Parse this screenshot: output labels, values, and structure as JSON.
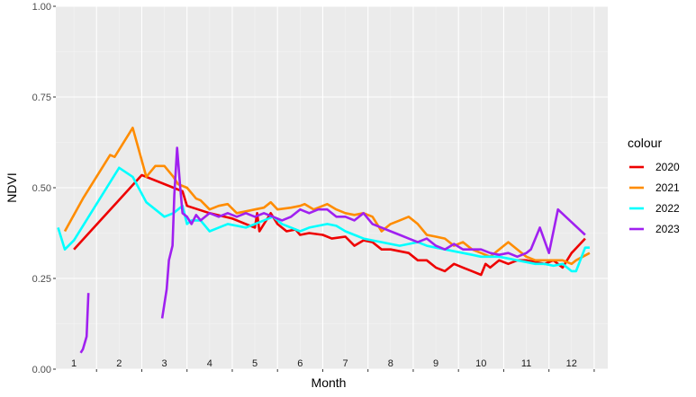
{
  "chart_data": {
    "type": "line",
    "xlabel": "Month",
    "ylabel": "NDVI",
    "ylim": [
      0,
      1
    ],
    "xlim": [
      0.6,
      12.8
    ],
    "yticks": [
      "0.00",
      "0.25",
      "0.50",
      "0.75",
      "1.00"
    ],
    "ytick_values": [
      0,
      0.25,
      0.5,
      0.75,
      1
    ],
    "xticks": [
      "1",
      "2",
      "3",
      "4",
      "5",
      "6",
      "7",
      "8",
      "9",
      "10",
      "11",
      "12"
    ],
    "grid": true,
    "legend": {
      "title": "colour",
      "placement": "right"
    },
    "series": [
      {
        "name": "2020",
        "color": "#ee0000",
        "points": [
          [
            1.0,
            0.33
          ],
          [
            2.5,
            0.535
          ],
          [
            3.4,
            0.49
          ],
          [
            3.5,
            0.45
          ],
          [
            4.0,
            0.43
          ],
          [
            4.5,
            0.415
          ],
          [
            4.8,
            0.4
          ],
          [
            5.0,
            0.39
          ],
          [
            5.05,
            0.43
          ],
          [
            5.1,
            0.38
          ],
          [
            5.35,
            0.43
          ],
          [
            5.5,
            0.4
          ],
          [
            5.7,
            0.38
          ],
          [
            5.9,
            0.385
          ],
          [
            6.0,
            0.37
          ],
          [
            6.2,
            0.375
          ],
          [
            6.5,
            0.37
          ],
          [
            6.7,
            0.36
          ],
          [
            7.0,
            0.365
          ],
          [
            7.2,
            0.34
          ],
          [
            7.4,
            0.355
          ],
          [
            7.6,
            0.35
          ],
          [
            7.8,
            0.33
          ],
          [
            8.0,
            0.33
          ],
          [
            8.2,
            0.325
          ],
          [
            8.4,
            0.32
          ],
          [
            8.6,
            0.3
          ],
          [
            8.8,
            0.3
          ],
          [
            9.0,
            0.28
          ],
          [
            9.2,
            0.27
          ],
          [
            9.4,
            0.29
          ],
          [
            9.6,
            0.28
          ],
          [
            9.8,
            0.27
          ],
          [
            10.0,
            0.26
          ],
          [
            10.1,
            0.29
          ],
          [
            10.2,
            0.28
          ],
          [
            10.4,
            0.3
          ],
          [
            10.6,
            0.29
          ],
          [
            10.8,
            0.3
          ],
          [
            11.0,
            0.3
          ],
          [
            11.2,
            0.295
          ],
          [
            11.4,
            0.29
          ],
          [
            11.6,
            0.3
          ],
          [
            11.8,
            0.28
          ],
          [
            12.0,
            0.32
          ],
          [
            12.3,
            0.36
          ]
        ]
      },
      {
        "name": "2021",
        "color": "#ff8c00",
        "points": [
          [
            0.8,
            0.38
          ],
          [
            1.2,
            0.47
          ],
          [
            1.8,
            0.59
          ],
          [
            1.9,
            0.585
          ],
          [
            2.3,
            0.665
          ],
          [
            2.6,
            0.53
          ],
          [
            2.8,
            0.56
          ],
          [
            3.0,
            0.56
          ],
          [
            3.2,
            0.53
          ],
          [
            3.3,
            0.51
          ],
          [
            3.5,
            0.5
          ],
          [
            3.7,
            0.47
          ],
          [
            3.8,
            0.465
          ],
          [
            4.0,
            0.44
          ],
          [
            4.2,
            0.45
          ],
          [
            4.4,
            0.455
          ],
          [
            4.6,
            0.43
          ],
          [
            4.8,
            0.435
          ],
          [
            5.0,
            0.44
          ],
          [
            5.2,
            0.445
          ],
          [
            5.35,
            0.46
          ],
          [
            5.5,
            0.44
          ],
          [
            5.8,
            0.445
          ],
          [
            6.0,
            0.45
          ],
          [
            6.1,
            0.455
          ],
          [
            6.3,
            0.44
          ],
          [
            6.5,
            0.45
          ],
          [
            6.6,
            0.455
          ],
          [
            6.8,
            0.44
          ],
          [
            7.0,
            0.43
          ],
          [
            7.2,
            0.425
          ],
          [
            7.4,
            0.43
          ],
          [
            7.6,
            0.42
          ],
          [
            7.8,
            0.38
          ],
          [
            8.0,
            0.4
          ],
          [
            8.2,
            0.41
          ],
          [
            8.4,
            0.42
          ],
          [
            8.6,
            0.4
          ],
          [
            8.8,
            0.37
          ],
          [
            9.0,
            0.365
          ],
          [
            9.2,
            0.36
          ],
          [
            9.4,
            0.34
          ],
          [
            9.6,
            0.35
          ],
          [
            9.8,
            0.33
          ],
          [
            10.0,
            0.32
          ],
          [
            10.2,
            0.31
          ],
          [
            10.4,
            0.33
          ],
          [
            10.6,
            0.35
          ],
          [
            10.8,
            0.33
          ],
          [
            11.0,
            0.31
          ],
          [
            11.2,
            0.3
          ],
          [
            11.4,
            0.3
          ],
          [
            11.6,
            0.3
          ],
          [
            11.8,
            0.3
          ],
          [
            12.0,
            0.29
          ],
          [
            12.1,
            0.3
          ],
          [
            12.4,
            0.32
          ]
        ]
      },
      {
        "name": "2022",
        "color": "#00ffff",
        "points": [
          [
            0.65,
            0.39
          ],
          [
            0.8,
            0.33
          ],
          [
            1.0,
            0.355
          ],
          [
            2.0,
            0.555
          ],
          [
            2.3,
            0.53
          ],
          [
            2.6,
            0.46
          ],
          [
            2.8,
            0.44
          ],
          [
            3.0,
            0.42
          ],
          [
            3.2,
            0.43
          ],
          [
            3.4,
            0.45
          ],
          [
            3.5,
            0.4
          ],
          [
            3.6,
            0.41
          ],
          [
            3.8,
            0.41
          ],
          [
            4.0,
            0.38
          ],
          [
            4.2,
            0.39
          ],
          [
            4.4,
            0.4
          ],
          [
            4.6,
            0.395
          ],
          [
            4.8,
            0.39
          ],
          [
            5.0,
            0.4
          ],
          [
            5.2,
            0.41
          ],
          [
            5.4,
            0.42
          ],
          [
            5.6,
            0.4
          ],
          [
            5.8,
            0.39
          ],
          [
            6.0,
            0.38
          ],
          [
            6.2,
            0.39
          ],
          [
            6.4,
            0.395
          ],
          [
            6.6,
            0.4
          ],
          [
            6.8,
            0.395
          ],
          [
            7.0,
            0.38
          ],
          [
            7.2,
            0.37
          ],
          [
            7.4,
            0.36
          ],
          [
            7.6,
            0.355
          ],
          [
            7.8,
            0.35
          ],
          [
            8.0,
            0.345
          ],
          [
            8.2,
            0.34
          ],
          [
            8.4,
            0.345
          ],
          [
            8.6,
            0.35
          ],
          [
            8.8,
            0.34
          ],
          [
            9.0,
            0.335
          ],
          [
            9.2,
            0.33
          ],
          [
            9.4,
            0.325
          ],
          [
            9.6,
            0.32
          ],
          [
            9.8,
            0.315
          ],
          [
            10.0,
            0.31
          ],
          [
            10.2,
            0.31
          ],
          [
            10.4,
            0.31
          ],
          [
            10.6,
            0.305
          ],
          [
            10.8,
            0.3
          ],
          [
            11.0,
            0.295
          ],
          [
            11.2,
            0.29
          ],
          [
            11.4,
            0.29
          ],
          [
            11.6,
            0.285
          ],
          [
            11.8,
            0.29
          ],
          [
            12.0,
            0.27
          ],
          [
            12.1,
            0.27
          ],
          [
            12.3,
            0.335
          ],
          [
            12.4,
            0.335
          ]
        ]
      },
      {
        "name": "2023",
        "color": "#a020f0",
        "segments": [
          [
            [
              1.15,
              0.045
            ],
            [
              1.2,
              0.055
            ],
            [
              1.28,
              0.09
            ],
            [
              1.32,
              0.21
            ]
          ],
          [
            [
              2.95,
              0.14
            ],
            [
              3.05,
              0.22
            ],
            [
              3.1,
              0.3
            ],
            [
              3.18,
              0.34
            ],
            [
              3.22,
              0.48
            ],
            [
              3.28,
              0.61
            ],
            [
              3.35,
              0.5
            ],
            [
              3.4,
              0.43
            ],
            [
              3.5,
              0.42
            ],
            [
              3.6,
              0.4
            ],
            [
              3.7,
              0.425
            ],
            [
              3.8,
              0.41
            ],
            [
              4.0,
              0.43
            ],
            [
              4.2,
              0.42
            ],
            [
              4.4,
              0.43
            ],
            [
              4.6,
              0.42
            ],
            [
              4.8,
              0.43
            ],
            [
              5.0,
              0.42
            ],
            [
              5.2,
              0.43
            ],
            [
              5.4,
              0.42
            ],
            [
              5.6,
              0.41
            ],
            [
              5.8,
              0.42
            ],
            [
              6.0,
              0.44
            ],
            [
              6.2,
              0.43
            ],
            [
              6.4,
              0.44
            ],
            [
              6.6,
              0.44
            ],
            [
              6.8,
              0.42
            ],
            [
              7.0,
              0.42
            ],
            [
              7.2,
              0.41
            ],
            [
              7.4,
              0.43
            ],
            [
              7.6,
              0.4
            ],
            [
              7.8,
              0.39
            ],
            [
              8.0,
              0.38
            ],
            [
              8.2,
              0.37
            ],
            [
              8.4,
              0.36
            ],
            [
              8.6,
              0.35
            ],
            [
              8.8,
              0.36
            ],
            [
              9.0,
              0.34
            ],
            [
              9.2,
              0.33
            ],
            [
              9.4,
              0.345
            ],
            [
              9.6,
              0.33
            ],
            [
              9.8,
              0.33
            ],
            [
              10.0,
              0.33
            ],
            [
              10.2,
              0.32
            ],
            [
              10.4,
              0.315
            ],
            [
              10.6,
              0.32
            ],
            [
              10.8,
              0.31
            ],
            [
              11.0,
              0.32
            ],
            [
              11.1,
              0.33
            ],
            [
              11.3,
              0.39
            ],
            [
              11.5,
              0.32
            ],
            [
              11.7,
              0.44
            ],
            [
              12.3,
              0.37
            ]
          ]
        ]
      }
    ]
  }
}
